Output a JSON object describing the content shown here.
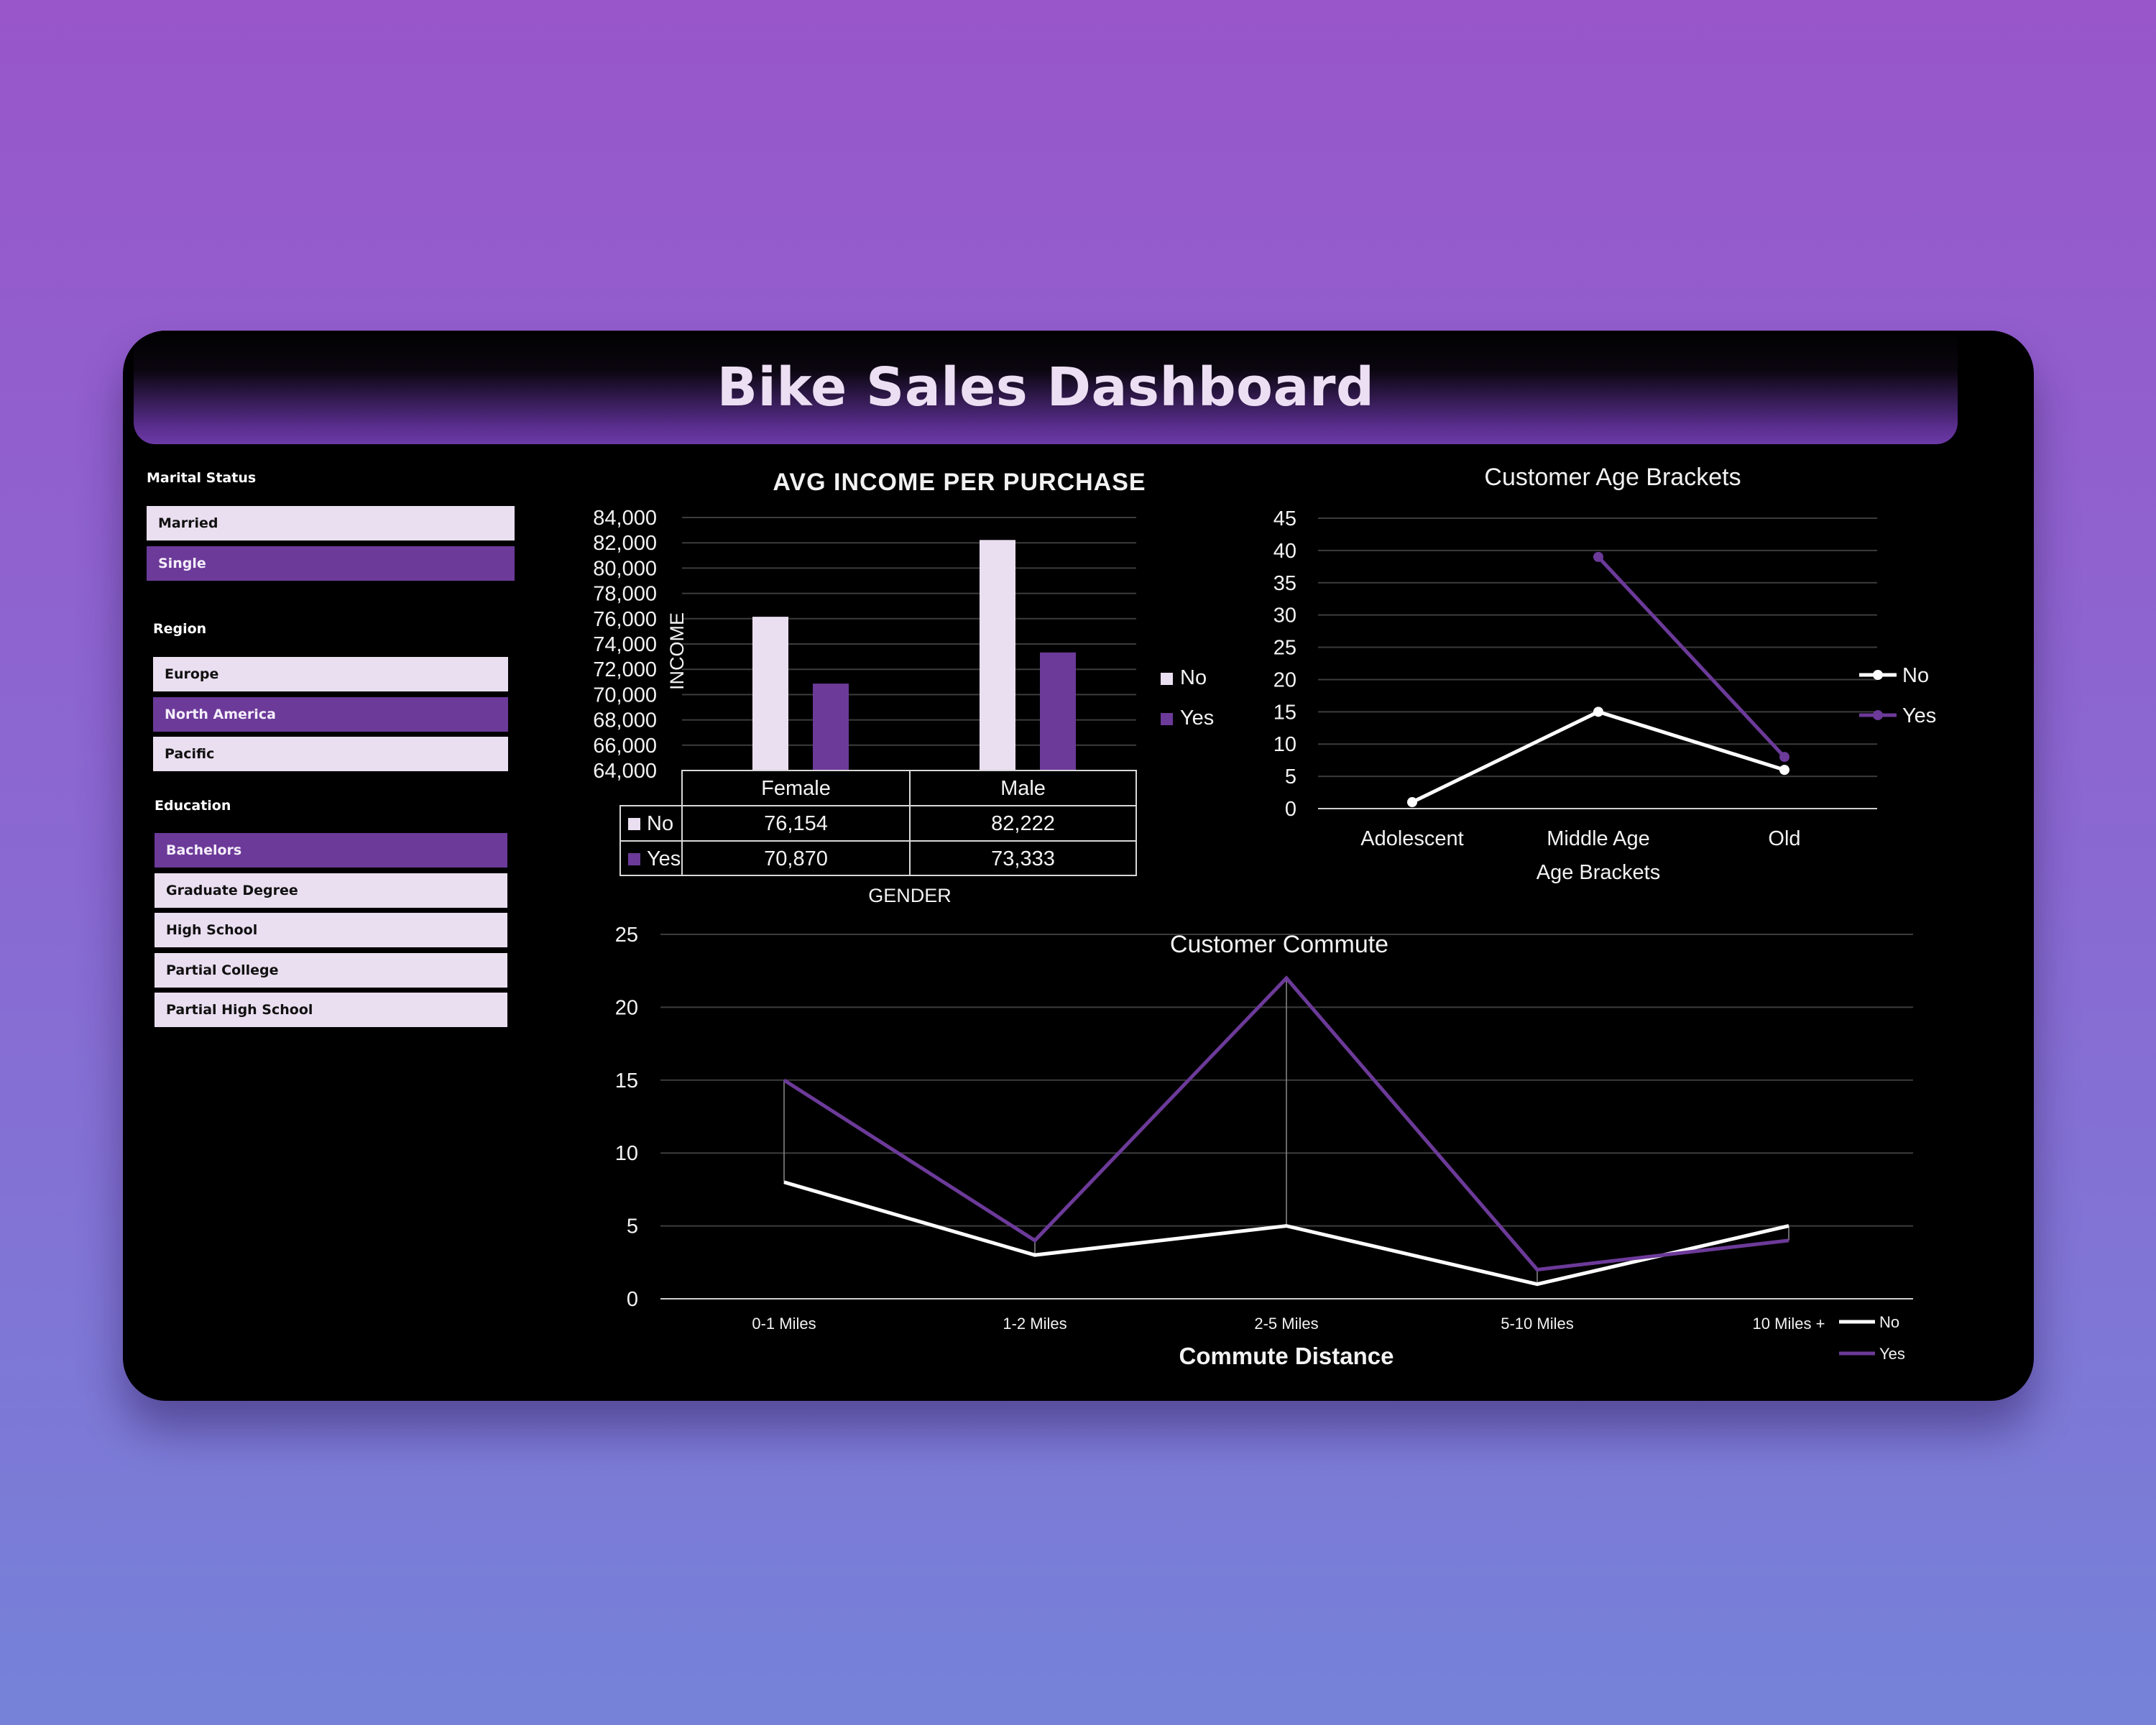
{
  "dashboard": {
    "title": "Bike Sales Dashboard"
  },
  "slicers": {
    "marital": {
      "title": "Marital Status",
      "items": [
        {
          "label": "Married",
          "selected": false
        },
        {
          "label": "Single",
          "selected": true
        }
      ]
    },
    "region": {
      "title": "Region",
      "items": [
        {
          "label": "Europe",
          "selected": false
        },
        {
          "label": "North America",
          "selected": true
        },
        {
          "label": "Pacific",
          "selected": false
        }
      ]
    },
    "education": {
      "title": "Education",
      "items": [
        {
          "label": "Bachelors",
          "selected": true
        },
        {
          "label": "Graduate Degree",
          "selected": false
        },
        {
          "label": "High School",
          "selected": false
        },
        {
          "label": "Partial College",
          "selected": false
        },
        {
          "label": "Partial High School",
          "selected": false
        }
      ]
    }
  },
  "colors": {
    "no": "#eadff0",
    "yes": "#6c3a99",
    "panel": "#000000"
  },
  "chart_data": [
    {
      "type": "bar",
      "title": "AVG INCOME PER PURCHASE",
      "xlabel": "GENDER",
      "ylabel": "INCOME",
      "categories": [
        "Female",
        "Male"
      ],
      "series": [
        {
          "name": "No",
          "values": [
            76154,
            82222
          ],
          "display": [
            "76,154",
            "82,222"
          ]
        },
        {
          "name": "Yes",
          "values": [
            70870,
            73333
          ],
          "display": [
            "70,870",
            "73,333"
          ]
        }
      ],
      "ylim": [
        64000,
        84000
      ],
      "yticks": [
        "64,000",
        "66,000",
        "68,000",
        "70,000",
        "72,000",
        "74,000",
        "76,000",
        "78,000",
        "80,000",
        "82,000",
        "84,000"
      ],
      "grid": true,
      "legend": "right",
      "data_table": true
    },
    {
      "type": "line",
      "title": "Customer Age Brackets",
      "xlabel": "Age Brackets",
      "ylabel": "",
      "categories": [
        "Adolescent",
        "Middle Age",
        "Old"
      ],
      "series": [
        {
          "name": "No",
          "values": [
            1,
            15,
            6
          ]
        },
        {
          "name": "Yes",
          "values": [
            null,
            39,
            8
          ]
        }
      ],
      "ylim": [
        0,
        45
      ],
      "yticks": [
        "0",
        "5",
        "10",
        "15",
        "20",
        "25",
        "30",
        "35",
        "40",
        "45"
      ],
      "grid": true,
      "legend": "right"
    },
    {
      "type": "line",
      "title": "Customer Commute",
      "xlabel": "Commute Distance",
      "ylabel": "",
      "categories": [
        "0-1 Miles",
        "1-2 Miles",
        "2-5 Miles",
        "5-10 Miles",
        "10 Miles +"
      ],
      "series": [
        {
          "name": "No",
          "values": [
            8,
            3,
            5,
            1,
            5
          ]
        },
        {
          "name": "Yes",
          "values": [
            15,
            4,
            22,
            2,
            4
          ]
        }
      ],
      "ylim": [
        0,
        25
      ],
      "yticks": [
        "0",
        "5",
        "10",
        "15",
        "20",
        "25"
      ],
      "grid": true,
      "drop_lines": true,
      "legend": "bottom-right"
    }
  ]
}
